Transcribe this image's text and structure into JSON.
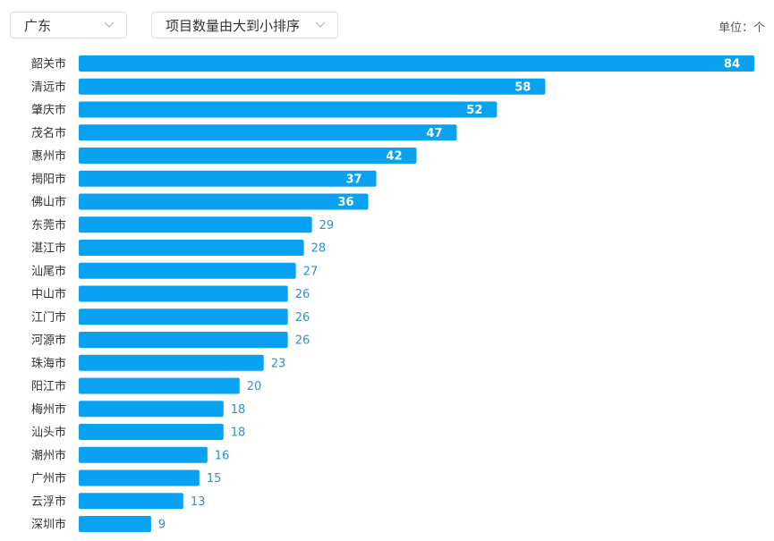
{
  "filters": {
    "region": {
      "selected": "广东",
      "icon": "chevron-down-icon"
    },
    "sort": {
      "selected": "项目数量由大到小排序",
      "icon": "chevron-down-icon"
    }
  },
  "unit_label": "单位：个",
  "colors": {
    "bar": "#08a2f0",
    "value_outside": "#2d8fd0",
    "value_inside": "#ffffff"
  },
  "chart_data": {
    "type": "bar",
    "orientation": "horizontal",
    "categories": [
      "韶关市",
      "清远市",
      "肇庆市",
      "茂名市",
      "惠州市",
      "揭阳市",
      "佛山市",
      "东莞市",
      "湛江市",
      "汕尾市",
      "中山市",
      "江门市",
      "河源市",
      "珠海市",
      "阳江市",
      "梅州市",
      "汕头市",
      "潮州市",
      "广州市",
      "云浮市",
      "深圳市"
    ],
    "values": [
      84,
      58,
      52,
      47,
      42,
      37,
      36,
      29,
      28,
      27,
      26,
      26,
      26,
      23,
      20,
      18,
      18,
      16,
      15,
      13,
      9
    ],
    "xlim": [
      0,
      84
    ],
    "grid": false,
    "legend": "none"
  }
}
